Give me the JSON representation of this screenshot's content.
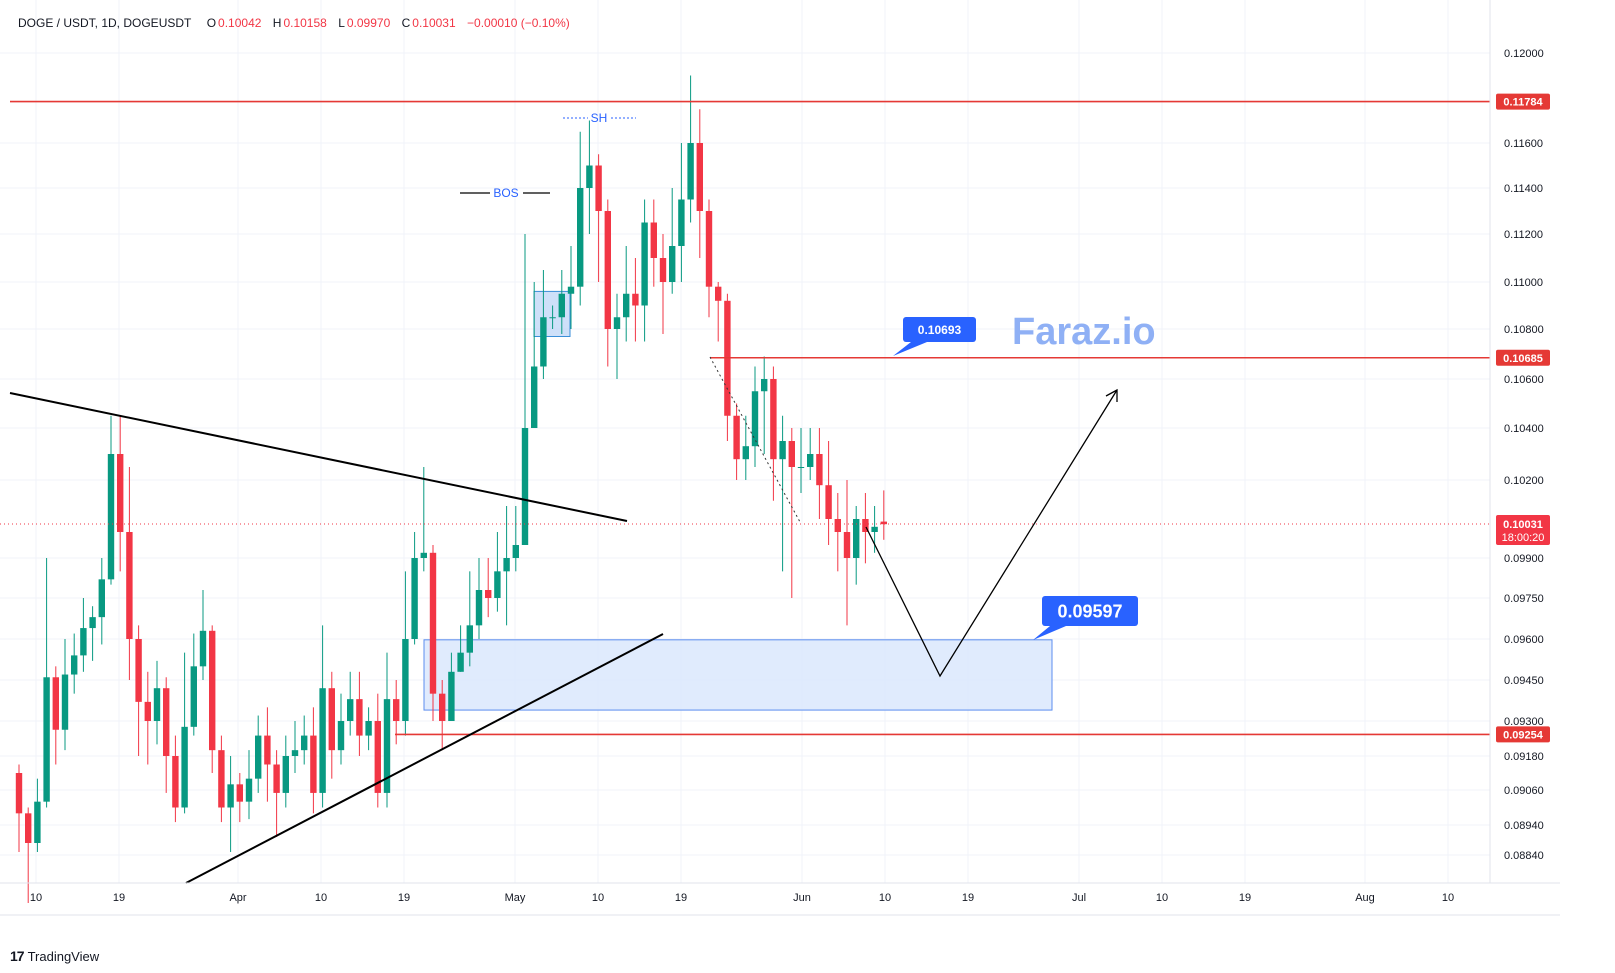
{
  "header": {
    "symbol": "DOGE / USDT, 1D, DOGEUSDT",
    "o_label": "O",
    "o_value": "0.10042",
    "h_label": "H",
    "h_value": "0.10158",
    "l_label": "L",
    "l_value": "0.09970",
    "c_label": "C",
    "c_value": "0.10031",
    "change": "−0.00010 (−0.10%)"
  },
  "watermark": "Faraz.io",
  "footer": {
    "brand": "TradingView"
  },
  "colors": {
    "up": "#089981",
    "down": "#f23645",
    "level": "#e53935",
    "zone_fill": "#dbe8fd",
    "zone_stroke": "#5b8def",
    "callout": "#2962ff",
    "watermark": "#8fb0f5"
  },
  "chart_data": {
    "type": "candlestick",
    "price_axis": {
      "ticks": [
        "0.12000",
        "0.11600",
        "0.11400",
        "0.11200",
        "0.11000",
        "0.10800",
        "0.10600",
        "0.10400",
        "0.10200",
        "0.09900",
        "0.09750",
        "0.09600",
        "0.09450",
        "0.09300",
        "0.09180",
        "0.09060",
        "0.08940",
        "0.08840"
      ]
    },
    "time_axis": {
      "ticks": [
        "10",
        "19",
        "Apr",
        "10",
        "19",
        "May",
        "10",
        "19",
        "Jun",
        "10",
        "19",
        "Jul",
        "10",
        "19",
        "Aug",
        "10"
      ]
    },
    "levels": [
      {
        "price": 0.11784,
        "label": "0.11784"
      },
      {
        "price": 0.10685,
        "label": "0.10685"
      },
      {
        "price": 0.09254,
        "label": "0.09254"
      }
    ],
    "last_price": {
      "label": "0.10031",
      "countdown": "18:00:20"
    },
    "annotations": {
      "callout_top": "0.10693",
      "callout_zone": "0.09597",
      "bos": "BOS",
      "sh": "SH"
    },
    "candles": [
      [
        0.0912,
        0.0898,
        0.0915,
        0.0885
      ],
      [
        0.0898,
        0.0888,
        0.09,
        0.0868
      ],
      [
        0.0888,
        0.0902,
        0.091,
        0.0885
      ],
      [
        0.0902,
        0.0946,
        0.099,
        0.09
      ],
      [
        0.0946,
        0.0927,
        0.095,
        0.0915
      ],
      [
        0.0927,
        0.0947,
        0.096,
        0.092
      ],
      [
        0.0947,
        0.0954,
        0.0962,
        0.094
      ],
      [
        0.0954,
        0.0964,
        0.0975,
        0.0948
      ],
      [
        0.0964,
        0.0968,
        0.0972,
        0.0952
      ],
      [
        0.0968,
        0.0982,
        0.099,
        0.0958
      ],
      [
        0.0982,
        0.103,
        0.1045,
        0.098
      ],
      [
        0.103,
        0.1,
        0.1045,
        0.0985
      ],
      [
        0.1,
        0.096,
        0.1025,
        0.0945
      ],
      [
        0.096,
        0.0937,
        0.0965,
        0.0918
      ],
      [
        0.0937,
        0.093,
        0.0948,
        0.0915
      ],
      [
        0.093,
        0.0942,
        0.0952,
        0.0922
      ],
      [
        0.0942,
        0.0918,
        0.0946,
        0.0905
      ],
      [
        0.0918,
        0.09,
        0.0925,
        0.0895
      ],
      [
        0.09,
        0.0928,
        0.0955,
        0.0898
      ],
      [
        0.0928,
        0.095,
        0.0962,
        0.0925
      ],
      [
        0.095,
        0.0963,
        0.0978,
        0.0945
      ],
      [
        0.0963,
        0.092,
        0.0965,
        0.0912
      ],
      [
        0.092,
        0.09,
        0.0925,
        0.0895
      ],
      [
        0.09,
        0.0908,
        0.0918,
        0.0885
      ],
      [
        0.0908,
        0.0902,
        0.0912,
        0.0895
      ],
      [
        0.0902,
        0.091,
        0.092,
        0.0896
      ],
      [
        0.091,
        0.0925,
        0.0932,
        0.0905
      ],
      [
        0.0925,
        0.0915,
        0.0935,
        0.0902
      ],
      [
        0.0915,
        0.0905,
        0.092,
        0.089
      ],
      [
        0.0905,
        0.0918,
        0.0925,
        0.09
      ],
      [
        0.0918,
        0.092,
        0.093,
        0.0912
      ],
      [
        0.092,
        0.0925,
        0.0932,
        0.0915
      ],
      [
        0.0925,
        0.0905,
        0.0935,
        0.0898
      ],
      [
        0.0905,
        0.0942,
        0.0965,
        0.09
      ],
      [
        0.0942,
        0.092,
        0.0948,
        0.091
      ],
      [
        0.092,
        0.093,
        0.094,
        0.0915
      ],
      [
        0.093,
        0.0938,
        0.0948,
        0.0925
      ],
      [
        0.0938,
        0.0925,
        0.0948,
        0.0918
      ],
      [
        0.0925,
        0.093,
        0.0935,
        0.092
      ],
      [
        0.093,
        0.0905,
        0.094,
        0.09
      ],
      [
        0.0905,
        0.0938,
        0.0955,
        0.09
      ],
      [
        0.0938,
        0.093,
        0.0945,
        0.0922
      ],
      [
        0.093,
        0.096,
        0.0985,
        0.0925
      ],
      [
        0.096,
        0.099,
        0.1,
        0.0958
      ],
      [
        0.099,
        0.0992,
        0.1025,
        0.0985
      ],
      [
        0.0992,
        0.094,
        0.0995,
        0.093
      ],
      [
        0.094,
        0.093,
        0.0945,
        0.092
      ],
      [
        0.093,
        0.0948,
        0.0955,
        0.094
      ],
      [
        0.0948,
        0.0955,
        0.0965,
        0.0948
      ],
      [
        0.0955,
        0.0965,
        0.0985,
        0.095
      ],
      [
        0.0965,
        0.0978,
        0.099,
        0.096
      ],
      [
        0.0978,
        0.0975,
        0.099,
        0.0968
      ],
      [
        0.0975,
        0.0985,
        0.1,
        0.097
      ],
      [
        0.0985,
        0.099,
        0.101,
        0.0965
      ],
      [
        0.099,
        0.0995,
        0.101,
        0.0985
      ],
      [
        0.0995,
        0.104,
        0.112,
        0.0995
      ],
      [
        0.104,
        0.1065,
        0.11,
        0.104
      ],
      [
        0.1065,
        0.1085,
        0.1105,
        0.106
      ],
      [
        0.1085,
        0.1085,
        0.109,
        0.108
      ],
      [
        0.1085,
        0.1095,
        0.1105,
        0.1078
      ],
      [
        0.1095,
        0.1098,
        0.1115,
        0.108
      ],
      [
        0.1098,
        0.114,
        0.1165,
        0.109
      ],
      [
        0.114,
        0.115,
        0.117,
        0.112
      ],
      [
        0.115,
        0.113,
        0.1155,
        0.11
      ],
      [
        0.113,
        0.108,
        0.1135,
        0.1065
      ],
      [
        0.108,
        0.1085,
        0.1095,
        0.106
      ],
      [
        0.1085,
        0.1095,
        0.1115,
        0.1075
      ],
      [
        0.1095,
        0.109,
        0.111,
        0.1075
      ],
      [
        0.109,
        0.1125,
        0.1135,
        0.1075
      ],
      [
        0.1125,
        0.111,
        0.1135,
        0.1098
      ],
      [
        0.111,
        0.11,
        0.112,
        0.1078
      ],
      [
        0.11,
        0.1115,
        0.114,
        0.1095
      ],
      [
        0.1115,
        0.1135,
        0.116,
        0.11
      ],
      [
        0.1135,
        0.116,
        0.119,
        0.1125
      ],
      [
        0.116,
        0.113,
        0.1175,
        0.111
      ],
      [
        0.113,
        0.1098,
        0.1135,
        0.1085
      ],
      [
        0.1098,
        0.1092,
        0.11,
        0.1075
      ],
      [
        0.1092,
        0.1045,
        0.1095,
        0.1035
      ],
      [
        0.1045,
        0.1028,
        0.105,
        0.102
      ],
      [
        0.1028,
        0.1033,
        0.1045,
        0.102
      ],
      [
        0.1033,
        0.1055,
        0.1065,
        0.1025
      ],
      [
        0.1055,
        0.106,
        0.1069,
        0.103
      ],
      [
        0.106,
        0.1028,
        0.1065,
        0.1012
      ],
      [
        0.1028,
        0.1035,
        0.1045,
        0.0985
      ],
      [
        0.1035,
        0.1025,
        0.104,
        0.0975
      ],
      [
        0.1025,
        0.1025,
        0.104,
        0.1015
      ],
      [
        0.1025,
        0.103,
        0.104,
        0.102
      ],
      [
        0.103,
        0.1018,
        0.104,
        0.1005
      ],
      [
        0.1018,
        0.1005,
        0.1035,
        0.0995
      ],
      [
        0.1005,
        0.1,
        0.1015,
        0.0985
      ],
      [
        0.1,
        0.099,
        0.102,
        0.0965
      ],
      [
        0.099,
        0.1005,
        0.101,
        0.098
      ],
      [
        0.1005,
        0.1,
        0.1015,
        0.0988
      ],
      [
        0.1,
        0.1002,
        0.101,
        0.0992
      ],
      [
        0.1004,
        0.1003,
        0.1016,
        0.0997
      ]
    ]
  }
}
